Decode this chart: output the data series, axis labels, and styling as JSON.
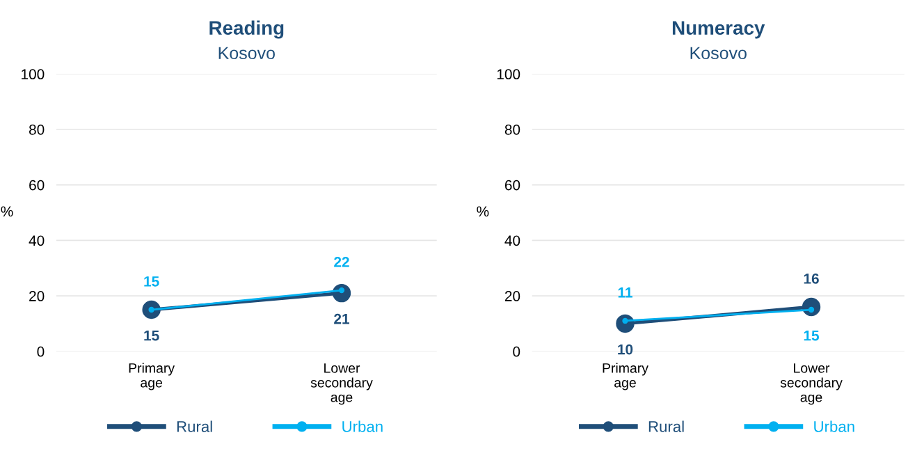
{
  "chart_data": [
    {
      "type": "line",
      "title": "Reading",
      "subtitle": "Kosovo",
      "ylabel": "%",
      "categories": [
        "Primary age",
        "Lower secondary age"
      ],
      "ylim": [
        0,
        100
      ],
      "yticks": [
        0,
        20,
        40,
        60,
        80,
        100
      ],
      "grid": "y",
      "legend": "bottom",
      "marker": "circle",
      "line_style": "solid",
      "data_labels": true,
      "series": [
        {
          "name": "Rural",
          "color": "#1f4e79",
          "values": [
            15,
            21
          ]
        },
        {
          "name": "Urban",
          "color": "#00b0f0",
          "values": [
            15,
            22
          ]
        }
      ]
    },
    {
      "type": "line",
      "title": "Numeracy",
      "subtitle": "Kosovo",
      "ylabel": "%",
      "categories": [
        "Primary age",
        "Lower secondary age"
      ],
      "ylim": [
        0,
        100
      ],
      "yticks": [
        0,
        20,
        40,
        60,
        80,
        100
      ],
      "grid": "y",
      "legend": "bottom",
      "marker": "circle",
      "line_style": "solid",
      "data_labels": true,
      "series": [
        {
          "name": "Rural",
          "color": "#1f4e79",
          "values": [
            10,
            16
          ]
        },
        {
          "name": "Urban",
          "color": "#00b0f0",
          "values": [
            11,
            15
          ]
        }
      ]
    }
  ]
}
